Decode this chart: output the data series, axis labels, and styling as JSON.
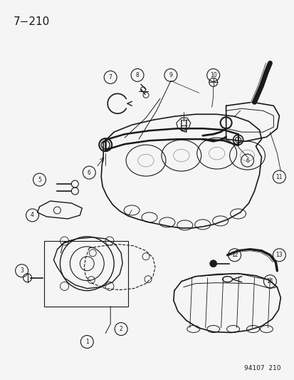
{
  "title": "7−210",
  "footer": "94107  210",
  "bg_color": "#f5f5f5",
  "line_color": "#1a1a1a",
  "title_fontsize": 11,
  "footer_fontsize": 6.5,
  "fig_width": 4.14,
  "fig_height": 5.33,
  "dpi": 100
}
